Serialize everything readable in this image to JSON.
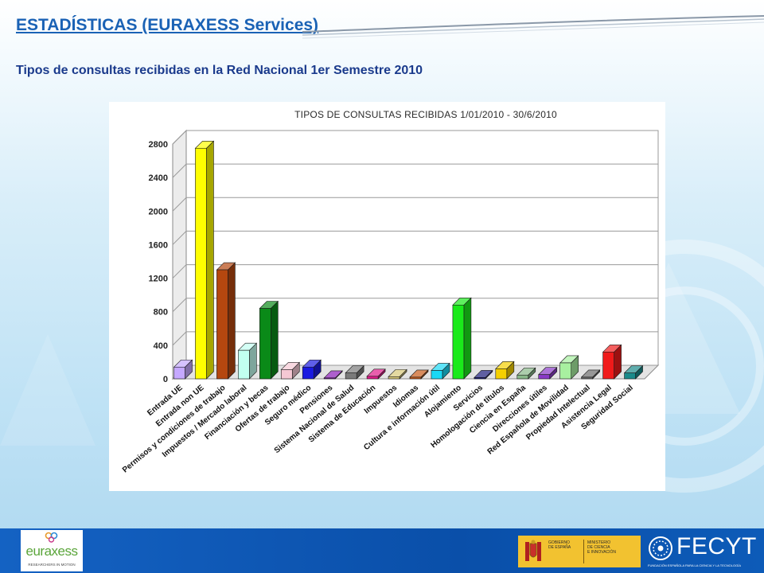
{
  "slide": {
    "title": "ESTADÍSTICAS (EURAXESS Services)",
    "subtitle": "Tipos de consultas recibidas en la Red Nacional 1er Semestre 2010"
  },
  "footer": {
    "euraxess_word": "euraxess",
    "euraxess_tagline": "RESEARCHERS IN MOTION",
    "gobierno_text": "GOBIERNO\nDE ESPAÑA",
    "ministerio_text": "MINISTERIO\nDE CIENCIA\nE INNOVACIÓN",
    "fecyt_word": "FECYT",
    "fecyt_tagline": "FUNDACIÓN ESPAÑOLA PARA LA CIENCIA Y LA TECNOLOGÍA"
  },
  "colors": {
    "title_blue": "#1a62b5",
    "subtitle_navy": "#1a3a8c",
    "footer_blue": "#0a4fa9",
    "gov_yellow": "#f2c230"
  },
  "chart_data": {
    "type": "bar",
    "title": "TIPOS DE CONSULTAS RECIBIDAS 1/01/2010 - 30/6/2010",
    "xlabel": "",
    "ylabel": "",
    "ylim": [
      0,
      2800
    ],
    "yticks": [
      0,
      400,
      800,
      1200,
      1600,
      2000,
      2400,
      2800
    ],
    "grid": true,
    "legend": "none",
    "categories": [
      "Entrada UE",
      "Entrada non UE",
      "Permisos y condiciones de trabajo",
      "Impuestos / Mercado laboral",
      "Financiación y becas",
      "Ofertas de trabajo",
      "Seguro médico",
      "Pensiones",
      "Sistema Nacional de Salud",
      "Sistema de Educación",
      "Impuestos",
      "Idiomas",
      "Cultura e información útil",
      "Alojamiento",
      "Servicios",
      "Homologación de títulos",
      "Ciencia en España",
      "Direcciones útiles",
      "Red Española de Movilidad",
      "Propiedad Intelectual",
      "Asistencia Legal",
      "Seguridad Social"
    ],
    "values": [
      140,
      2750,
      1300,
      340,
      840,
      110,
      140,
      10,
      70,
      30,
      25,
      20,
      100,
      880,
      15,
      120,
      45,
      50,
      190,
      20,
      320,
      70
    ],
    "bar_colors": [
      "#c5a8ff",
      "#ffff00",
      "#b5470f",
      "#c2fff0",
      "#0a8a18",
      "#f5c8d4",
      "#1a1ae0",
      "#8a1ab8",
      "#7a7a7a",
      "#e01a8a",
      "#d8c878",
      "#c85a18",
      "#1ad8f5",
      "#1aea1a",
      "#1a1a7a",
      "#f5d000",
      "#88b888",
      "#8a3ac8",
      "#a8f0a0",
      "#6a6a6a",
      "#f01a1a",
      "#1a8a8a"
    ]
  }
}
